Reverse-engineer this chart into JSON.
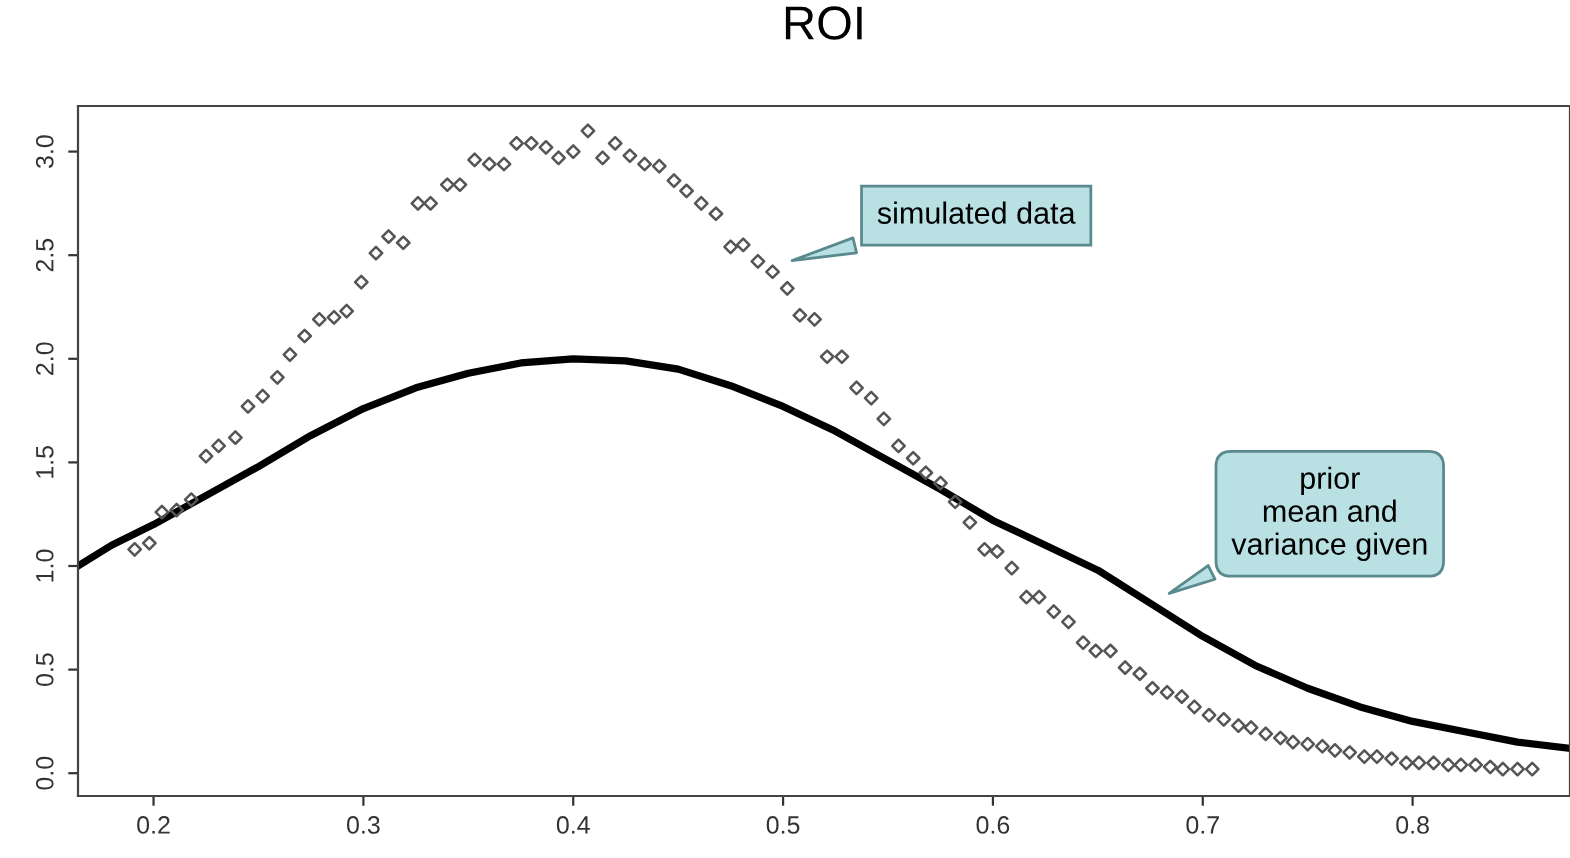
{
  "chart_data": {
    "type": "scatter",
    "title": "ROI",
    "xlim": [
      0.164,
      0.875
    ],
    "ylim": [
      -0.11,
      3.22
    ],
    "xticks": [
      0.2,
      0.3,
      0.4,
      0.5,
      0.6,
      0.7,
      0.8
    ],
    "yticks": [
      {
        "value": 0,
        "label": "0.0"
      },
      {
        "value": 0.5,
        "label": "0.5"
      },
      {
        "value": 1,
        "label": "1.0"
      },
      {
        "value": 1.5,
        "label": "1.5"
      },
      {
        "value": 2,
        "label": "2.0"
      },
      {
        "value": 2.5,
        "label": "2.5"
      },
      {
        "value": 3,
        "label": "3.0"
      }
    ],
    "grid": false,
    "series": [
      {
        "marker": "diamond",
        "color": "#555555",
        "x": [
          0.191,
          0.198,
          0.204,
          0.211,
          0.218,
          0.225,
          0.231,
          0.239,
          0.245,
          0.252,
          0.259,
          0.265,
          0.272,
          0.279,
          0.286,
          0.292,
          0.299,
          0.306,
          0.312,
          0.319,
          0.326,
          0.332,
          0.34,
          0.346,
          0.353,
          0.36,
          0.367,
          0.373,
          0.38,
          0.387,
          0.393,
          0.4,
          0.407,
          0.414,
          0.42,
          0.427,
          0.434,
          0.441,
          0.448,
          0.454,
          0.461,
          0.468,
          0.475,
          0.481,
          0.488,
          0.495,
          0.502,
          0.508,
          0.515,
          0.521,
          0.528,
          0.535,
          0.542,
          0.548,
          0.555,
          0.562,
          0.568,
          0.575,
          0.582,
          0.589,
          0.596,
          0.602,
          0.609,
          0.616,
          0.622,
          0.629,
          0.636,
          0.643,
          0.649,
          0.656,
          0.663,
          0.67,
          0.676,
          0.683,
          0.69,
          0.696,
          0.703,
          0.71,
          0.717,
          0.723,
          0.73,
          0.737,
          0.743,
          0.75,
          0.757,
          0.763,
          0.77,
          0.777,
          0.783,
          0.79,
          0.797,
          0.803,
          0.81,
          0.817,
          0.823,
          0.83,
          0.837,
          0.843,
          0.85,
          0.857
        ],
        "values": [
          1.08,
          1.11,
          1.26,
          1.27,
          1.32,
          1.53,
          1.58,
          1.62,
          1.77,
          1.82,
          1.91,
          2.02,
          2.11,
          2.19,
          2.2,
          2.23,
          2.37,
          2.51,
          2.59,
          2.56,
          2.75,
          2.75,
          2.84,
          2.84,
          2.96,
          2.94,
          2.94,
          3.04,
          3.04,
          3.02,
          2.97,
          3.0,
          3.1,
          2.97,
          3.04,
          2.98,
          2.94,
          2.93,
          2.86,
          2.81,
          2.75,
          2.7,
          2.54,
          2.55,
          2.47,
          2.42,
          2.34,
          2.21,
          2.19,
          2.01,
          2.01,
          1.86,
          1.81,
          1.71,
          1.58,
          1.52,
          1.45,
          1.4,
          1.31,
          1.21,
          1.08,
          1.07,
          0.99,
          0.85,
          0.85,
          0.78,
          0.73,
          0.63,
          0.59,
          0.59,
          0.51,
          0.48,
          0.41,
          0.39,
          0.37,
          0.32,
          0.28,
          0.26,
          0.23,
          0.22,
          0.19,
          0.17,
          0.15,
          0.14,
          0.13,
          0.11,
          0.1,
          0.08,
          0.08,
          0.07,
          0.05,
          0.05,
          0.05,
          0.04,
          0.04,
          0.04,
          0.03,
          0.02,
          0.02,
          0.02
        ]
      },
      {
        "type": "line",
        "marker": "none",
        "line_style": "solid",
        "color": "#000000",
        "x": [
          0.164,
          0.18,
          0.2,
          0.225,
          0.25,
          0.275,
          0.3,
          0.325,
          0.35,
          0.375,
          0.4,
          0.425,
          0.45,
          0.475,
          0.5,
          0.525,
          0.55,
          0.575,
          0.6,
          0.625,
          0.65,
          0.675,
          0.7,
          0.725,
          0.75,
          0.775,
          0.8,
          0.825,
          0.85,
          0.875
        ],
        "values": [
          1.0,
          1.1,
          1.2,
          1.34,
          1.48,
          1.63,
          1.76,
          1.86,
          1.93,
          1.98,
          2.0,
          1.99,
          1.95,
          1.87,
          1.77,
          1.65,
          1.51,
          1.37,
          1.22,
          1.1,
          0.98,
          0.82,
          0.66,
          0.52,
          0.41,
          0.32,
          0.25,
          0.2,
          0.15,
          0.12
        ]
      }
    ],
    "annotations": [
      "simulated data",
      "prior\nmean and\nvariance given"
    ]
  }
}
